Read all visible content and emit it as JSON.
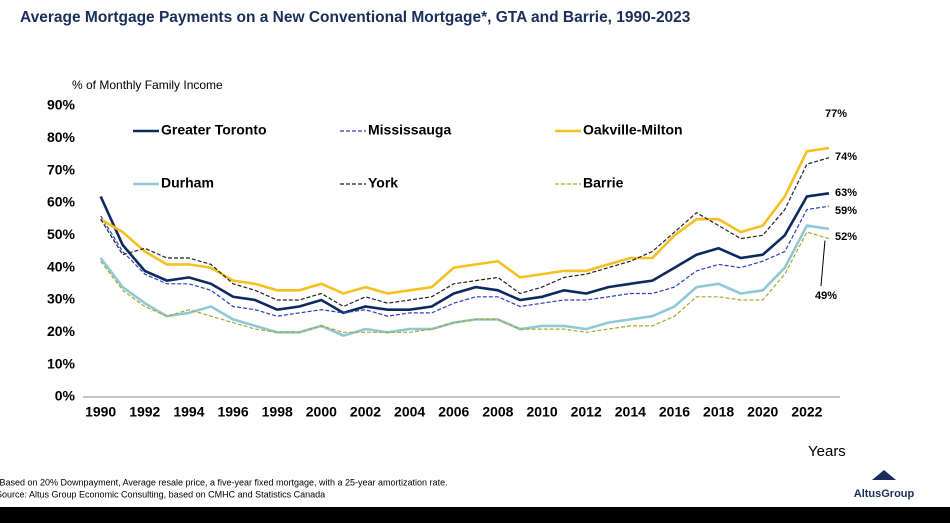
{
  "chart_data": {
    "type": "line",
    "title": "Average Mortgage Payments on a New Conventional Mortgage*, GTA and Barrie, 1990-2023",
    "y_axis_label": "% of Monthly Family Income",
    "x_axis_label": "Years",
    "footnote": "*Based on 20% Downpayment, Average resale price, a five-year fixed mortgage, with a 25-year amortization rate.",
    "source": "Source:  Altus Group Economic Consulting, based on CMHC and Statistics Canada",
    "logo": "AltusGroup",
    "x": [
      1990,
      1991,
      1992,
      1993,
      1994,
      1995,
      1996,
      1997,
      1998,
      1999,
      2000,
      2001,
      2002,
      2003,
      2004,
      2005,
      2006,
      2007,
      2008,
      2009,
      2010,
      2011,
      2012,
      2013,
      2014,
      2015,
      2016,
      2017,
      2018,
      2019,
      2020,
      2021,
      2022,
      2023
    ],
    "xlim": [
      1989.2,
      2023.5
    ],
    "xticks": [
      1990,
      1992,
      1994,
      1996,
      1998,
      2000,
      2002,
      2004,
      2006,
      2008,
      2010,
      2012,
      2014,
      2016,
      2018,
      2020,
      2022
    ],
    "ylim": [
      0,
      90
    ],
    "yticks": [
      {
        "value": 0,
        "label": "0%"
      },
      {
        "value": 10,
        "label": "10%"
      },
      {
        "value": 20,
        "label": "20%"
      },
      {
        "value": 30,
        "label": "30%"
      },
      {
        "value": 40,
        "label": "40%"
      },
      {
        "value": 50,
        "label": "50%"
      },
      {
        "value": 60,
        "label": "60%"
      },
      {
        "value": 70,
        "label": "70%"
      },
      {
        "value": 80,
        "label": "80%"
      },
      {
        "value": 90,
        "label": "90%"
      }
    ],
    "grid": false,
    "series": [
      {
        "name": "Greater Toronto",
        "color": "#0d2a5e",
        "dash": false,
        "end_label": "63%",
        "values": [
          62,
          47,
          39,
          36,
          37,
          35,
          31,
          30,
          27,
          28,
          30,
          26,
          28,
          27,
          27,
          28,
          32,
          34,
          33,
          30,
          31,
          33,
          32,
          34,
          35,
          36,
          40,
          44,
          46,
          43,
          44,
          50,
          62,
          63
        ]
      },
      {
        "name": "Mississauga",
        "color": "#2a3fbf",
        "dash": true,
        "end_label": "59%",
        "values": [
          56,
          45,
          38,
          35,
          35,
          33,
          28,
          27,
          25,
          26,
          27,
          26,
          27,
          25,
          26,
          26,
          29,
          31,
          31,
          28,
          29,
          30,
          30,
          31,
          32,
          32,
          34,
          39,
          41,
          40,
          42,
          45,
          58,
          59
        ]
      },
      {
        "name": "Oakville-Milton",
        "color": "#f5c020",
        "dash": false,
        "end_label": "77%",
        "values": [
          55,
          51,
          45,
          41,
          41,
          40,
          36,
          35,
          33,
          33,
          35,
          32,
          34,
          32,
          33,
          34,
          40,
          41,
          42,
          37,
          38,
          39,
          39,
          41,
          43,
          43,
          50,
          55,
          55,
          51,
          53,
          62,
          76,
          77
        ]
      },
      {
        "name": "Durham",
        "color": "#8fc8d8",
        "dash": false,
        "end_label": "52%",
        "values": [
          43,
          34,
          29,
          25,
          26,
          28,
          24,
          22,
          20,
          20,
          22,
          19,
          21,
          20,
          21,
          21,
          23,
          24,
          24,
          21,
          22,
          22,
          21,
          23,
          24,
          25,
          28,
          34,
          35,
          32,
          33,
          40,
          53,
          52
        ]
      },
      {
        "name": "York",
        "color": "#222222",
        "dash": true,
        "end_label": "74%",
        "values": [
          55,
          44,
          46,
          43,
          43,
          41,
          35,
          33,
          30,
          30,
          32,
          28,
          31,
          29,
          30,
          31,
          35,
          36,
          37,
          32,
          34,
          37,
          38,
          40,
          42,
          45,
          51,
          57,
          53,
          49,
          50,
          58,
          72,
          74
        ]
      },
      {
        "name": "Barrie",
        "color": "#a8a830",
        "dash": true,
        "end_label": "49%",
        "values": [
          42,
          33,
          28,
          25,
          27,
          25,
          23,
          21,
          20,
          20,
          22,
          20,
          20,
          20,
          20,
          21,
          23,
          24,
          24,
          21,
          21,
          21,
          20,
          21,
          22,
          22,
          25,
          31,
          31,
          30,
          30,
          38,
          51,
          49
        ]
      }
    ]
  }
}
